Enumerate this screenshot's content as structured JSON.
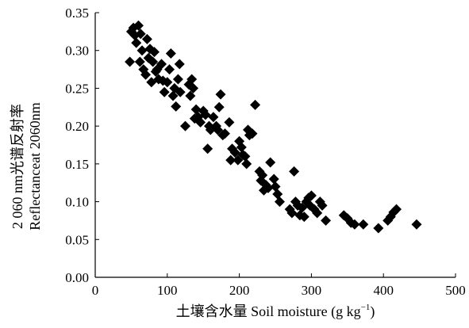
{
  "chart_data": {
    "type": "scatter",
    "title": "",
    "xlabel_cn": "土壤含水量",
    "xlabel_en": "Soil moisture (g kg",
    "xlabel_sup": "−1",
    "xlabel_tail": ")",
    "ylabel_line1": "2 060 nm光谱反射率",
    "ylabel_line2": "Reflectanceat 2060nm",
    "xlim": [
      0,
      500
    ],
    "ylim": [
      0,
      0.35
    ],
    "x_ticks": [
      "0",
      "100",
      "200",
      "300",
      "400",
      "500"
    ],
    "y_ticks": [
      "0.00",
      "0.05",
      "0.10",
      "0.15",
      "0.20",
      "0.25",
      "0.30",
      "0.35"
    ],
    "marker": "diamond",
    "marker_color": "#000000",
    "grid": false,
    "legend": "none",
    "points": [
      [
        48,
        0.285
      ],
      [
        50,
        0.325
      ],
      [
        53,
        0.33
      ],
      [
        55,
        0.32
      ],
      [
        57,
        0.31
      ],
      [
        60,
        0.333
      ],
      [
        62,
        0.285
      ],
      [
        63,
        0.322
      ],
      [
        65,
        0.3
      ],
      [
        67,
        0.275
      ],
      [
        70,
        0.268
      ],
      [
        72,
        0.315
      ],
      [
        74,
        0.29
      ],
      [
        76,
        0.302
      ],
      [
        78,
        0.258
      ],
      [
        80,
        0.285
      ],
      [
        82,
        0.298
      ],
      [
        84,
        0.272
      ],
      [
        86,
        0.275
      ],
      [
        88,
        0.262
      ],
      [
        92,
        0.282
      ],
      [
        94,
        0.26
      ],
      [
        96,
        0.245
      ],
      [
        100,
        0.258
      ],
      [
        103,
        0.275
      ],
      [
        105,
        0.296
      ],
      [
        108,
        0.24
      ],
      [
        110,
        0.25
      ],
      [
        112,
        0.226
      ],
      [
        115,
        0.262
      ],
      [
        117,
        0.282
      ],
      [
        118,
        0.245
      ],
      [
        125,
        0.2
      ],
      [
        130,
        0.255
      ],
      [
        132,
        0.24
      ],
      [
        134,
        0.262
      ],
      [
        136,
        0.25
      ],
      [
        138,
        0.21
      ],
      [
        140,
        0.222
      ],
      [
        143,
        0.212
      ],
      [
        146,
        0.205
      ],
      [
        150,
        0.22
      ],
      [
        153,
        0.215
      ],
      [
        156,
        0.17
      ],
      [
        158,
        0.2
      ],
      [
        160,
        0.195
      ],
      [
        164,
        0.212
      ],
      [
        168,
        0.2
      ],
      [
        170,
        0.195
      ],
      [
        172,
        0.225
      ],
      [
        174,
        0.242
      ],
      [
        177,
        0.188
      ],
      [
        180,
        0.19
      ],
      [
        186,
        0.205
      ],
      [
        188,
        0.155
      ],
      [
        190,
        0.17
      ],
      [
        194,
        0.165
      ],
      [
        198,
        0.155
      ],
      [
        200,
        0.18
      ],
      [
        203,
        0.172
      ],
      [
        205,
        0.162
      ],
      [
        208,
        0.16
      ],
      [
        210,
        0.15
      ],
      [
        212,
        0.195
      ],
      [
        214,
        0.188
      ],
      [
        218,
        0.19
      ],
      [
        222,
        0.228
      ],
      [
        228,
        0.14
      ],
      [
        230,
        0.128
      ],
      [
        232,
        0.135
      ],
      [
        234,
        0.115
      ],
      [
        237,
        0.122
      ],
      [
        240,
        0.118
      ],
      [
        243,
        0.152
      ],
      [
        248,
        0.13
      ],
      [
        250,
        0.12
      ],
      [
        253,
        0.11
      ],
      [
        256,
        0.1
      ],
      [
        270,
        0.09
      ],
      [
        273,
        0.085
      ],
      [
        276,
        0.14
      ],
      [
        278,
        0.1
      ],
      [
        281,
        0.095
      ],
      [
        284,
        0.082
      ],
      [
        287,
        0.092
      ],
      [
        290,
        0.08
      ],
      [
        293,
        0.1
      ],
      [
        296,
        0.105
      ],
      [
        298,
        0.095
      ],
      [
        300,
        0.108
      ],
      [
        304,
        0.09
      ],
      [
        308,
        0.085
      ],
      [
        312,
        0.1
      ],
      [
        315,
        0.095
      ],
      [
        320,
        0.075
      ],
      [
        345,
        0.082
      ],
      [
        350,
        0.078
      ],
      [
        355,
        0.072
      ],
      [
        360,
        0.07
      ],
      [
        372,
        0.07
      ],
      [
        393,
        0.065
      ],
      [
        406,
        0.075
      ],
      [
        410,
        0.08
      ],
      [
        414,
        0.086
      ],
      [
        418,
        0.09
      ],
      [
        446,
        0.07
      ]
    ]
  }
}
